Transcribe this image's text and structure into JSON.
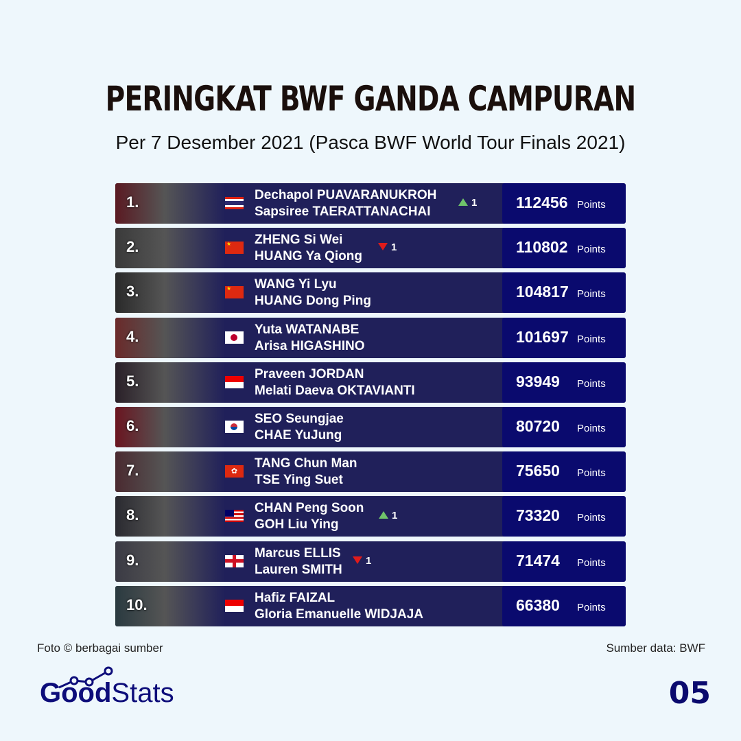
{
  "title": "PERINGKAT BWF GANDA CAMPURAN",
  "subtitle": "Per 7 Desember 2021 (Pasca BWF World Tour Finals 2021)",
  "points_label": "Points",
  "colors": {
    "background": "#eef7fc",
    "row": "#20205a",
    "points_box": "#0a0a6e",
    "up": "#6fc36a",
    "down": "#e01b1b"
  },
  "rows": [
    {
      "rank": "1.",
      "flag": "thailand",
      "player1": "Dechapol PUAVARANUKROH",
      "player2": "Sapsiree TAERATTANACHAI",
      "change": "up",
      "change_value": "1",
      "points": "112456"
    },
    {
      "rank": "2.",
      "flag": "china",
      "player1": "ZHENG Si Wei",
      "player2": "HUANG Ya Qiong",
      "change": "down",
      "change_value": "1",
      "points": "110802"
    },
    {
      "rank": "3.",
      "flag": "china",
      "player1": "WANG Yi Lyu",
      "player2": "HUANG Dong Ping",
      "change": "",
      "change_value": "",
      "points": "104817"
    },
    {
      "rank": "4.",
      "flag": "japan",
      "player1": "Yuta WATANABE",
      "player2": "Arisa HIGASHINO",
      "change": "",
      "change_value": "",
      "points": "101697"
    },
    {
      "rank": "5.",
      "flag": "indonesia",
      "player1": "Praveen JORDAN",
      "player2": "Melati Daeva OKTAVIANTI",
      "change": "",
      "change_value": "",
      "points": "93949"
    },
    {
      "rank": "6.",
      "flag": "south-korea",
      "player1": "SEO Seungjae",
      "player2": "CHAE YuJung",
      "change": "",
      "change_value": "",
      "points": "80720"
    },
    {
      "rank": "7.",
      "flag": "hong-kong",
      "player1": "TANG Chun Man",
      "player2": "TSE Ying Suet",
      "change": "",
      "change_value": "",
      "points": "75650"
    },
    {
      "rank": "8.",
      "flag": "malaysia",
      "player1": "CHAN Peng Soon",
      "player2": "GOH Liu Ying",
      "change": "up",
      "change_value": "1",
      "points": "73320"
    },
    {
      "rank": "9.",
      "flag": "england",
      "player1": "Marcus ELLIS",
      "player2": "Lauren SMITH",
      "change": "down",
      "change_value": "1",
      "points": "71474"
    },
    {
      "rank": "10.",
      "flag": "indonesia",
      "player1": "Hafiz FAIZAL",
      "player2": "Gloria Emanuelle WIDJAJA",
      "change": "",
      "change_value": "",
      "points": "66380"
    }
  ],
  "footer": {
    "photo_credit": "Foto © berbagai sumber",
    "source": "Sumber data: BWF",
    "page_number": "05"
  },
  "logo": {
    "part1": "Good",
    "part2": "Stats"
  }
}
